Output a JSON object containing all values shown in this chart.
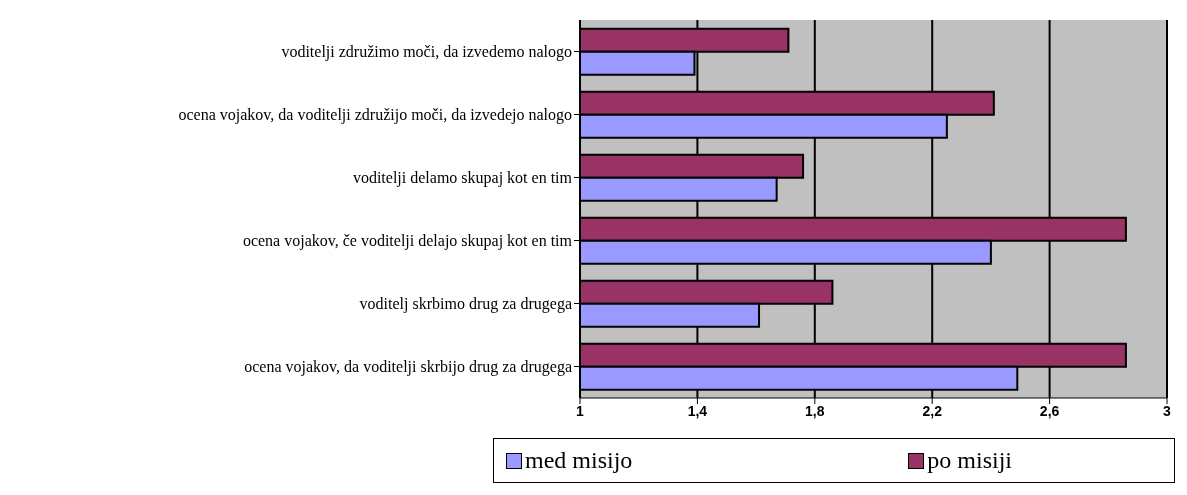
{
  "chart_data": {
    "type": "bar",
    "orientation": "horizontal",
    "categories": [
      "voditelji združimo moči, da izvedemo nalogo",
      "ocena vojakov, da voditelji združijo moči, da izvedejo nalogo",
      "voditelji delamo skupaj kot en tim",
      "ocena vojakov, če voditelji delajo skupaj kot en tim",
      "voditelj skrbimo drug za drugega",
      "ocena vojakov, da voditelji skrbijo drug za drugega"
    ],
    "series": [
      {
        "name": "med misijo",
        "color": "#9999ff",
        "values": [
          1.39,
          2.25,
          1.67,
          2.4,
          1.61,
          2.49
        ]
      },
      {
        "name": "po misiji",
        "color": "#993366",
        "values": [
          1.71,
          2.41,
          1.76,
          2.86,
          1.86,
          2.86
        ]
      }
    ],
    "xlim": [
      1,
      3
    ],
    "xticks": [
      1,
      {
        "value": 1.4,
        "label": "1,4"
      },
      {
        "value": 1.8,
        "label": "1,8"
      },
      {
        "value": 2.2,
        "label": "2,2"
      },
      {
        "value": 2.6,
        "label": "2,6"
      },
      3
    ],
    "grid": "x",
    "legend": "bottom"
  }
}
